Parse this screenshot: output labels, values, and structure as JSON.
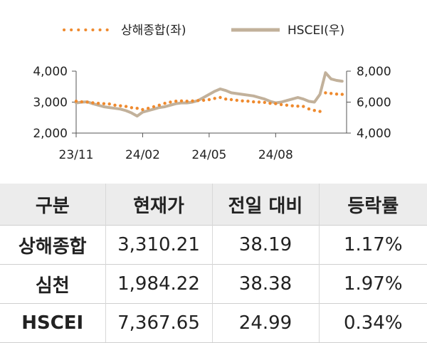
{
  "colors": {
    "shanghai": "#ef8a2e",
    "hscei": "#c2b19b",
    "axis": "#555555",
    "table_header_bg": "#ececec"
  },
  "legend": {
    "shanghai_label": "상해종합(좌)",
    "hscei_label": "HSCEI(우)"
  },
  "chart_data": {
    "type": "line",
    "x_ticks": [
      "23/11",
      "24/02",
      "24/05",
      "24/08"
    ],
    "x_tick_months": [
      0,
      3,
      6,
      9
    ],
    "x_range_months": [
      0,
      12.2
    ],
    "y_left": {
      "ticks": [
        "4,000",
        "3,000",
        "2,000"
      ],
      "tick_values": [
        4000,
        3000,
        2000
      ],
      "lim": [
        2000,
        4000
      ]
    },
    "y_right": {
      "ticks": [
        "8,000",
        "6,000",
        "4,000"
      ],
      "tick_values": [
        8000,
        6000,
        4000
      ],
      "lim": [
        4000,
        8000
      ]
    },
    "grid": false,
    "legend_position": "top",
    "series": [
      {
        "name": "상해종합(좌)",
        "axis": "left",
        "style": "dotted",
        "x": [
          0,
          0.25,
          0.5,
          0.75,
          1,
          1.25,
          1.5,
          1.75,
          2,
          2.25,
          2.5,
          2.75,
          3,
          3.25,
          3.5,
          3.75,
          4,
          4.25,
          4.5,
          4.75,
          5,
          5.25,
          5.5,
          5.75,
          6,
          6.25,
          6.5,
          6.75,
          7,
          7.25,
          7.5,
          7.75,
          8,
          8.25,
          8.5,
          8.75,
          9,
          9.25,
          9.5,
          9.75,
          10,
          10.25,
          10.5,
          10.75,
          11,
          11.25,
          11.5,
          11.75,
          12
        ],
        "values": [
          3030,
          3010,
          3000,
          2980,
          2960,
          2950,
          2940,
          2900,
          2880,
          2860,
          2820,
          2800,
          2760,
          2800,
          2850,
          2900,
          2960,
          3000,
          3030,
          3040,
          3030,
          3040,
          3050,
          3060,
          3080,
          3120,
          3150,
          3100,
          3080,
          3060,
          3040,
          3030,
          3010,
          3000,
          2990,
          2960,
          2950,
          2920,
          2900,
          2880,
          2870,
          2860,
          2780,
          2730,
          2700,
          3300,
          3280,
          3260,
          3250
        ]
      },
      {
        "name": "HSCEI(우)",
        "axis": "right",
        "style": "solid",
        "x": [
          0,
          0.25,
          0.5,
          0.75,
          1,
          1.25,
          1.5,
          1.75,
          2,
          2.25,
          2.5,
          2.75,
          3,
          3.25,
          3.5,
          3.75,
          4,
          4.25,
          4.5,
          4.75,
          5,
          5.25,
          5.5,
          5.75,
          6,
          6.25,
          6.5,
          6.75,
          7,
          7.25,
          7.5,
          7.75,
          8,
          8.25,
          8.5,
          8.75,
          9,
          9.25,
          9.5,
          9.75,
          10,
          10.25,
          10.5,
          10.75,
          11,
          11.25,
          11.5,
          11.75,
          12
        ],
        "values": [
          5950,
          6000,
          6020,
          5900,
          5800,
          5700,
          5650,
          5600,
          5550,
          5450,
          5300,
          5100,
          5350,
          5450,
          5550,
          5650,
          5700,
          5800,
          5900,
          5950,
          5950,
          6000,
          6100,
          6300,
          6500,
          6700,
          6850,
          6750,
          6600,
          6550,
          6500,
          6450,
          6400,
          6300,
          6200,
          6050,
          5950,
          6000,
          6100,
          6200,
          6300,
          6200,
          6050,
          6000,
          6500,
          7900,
          7500,
          7400,
          7350
        ]
      }
    ]
  },
  "table": {
    "headers": [
      "구분",
      "현재가",
      "전일 대비",
      "등락률"
    ],
    "rows": [
      [
        "상해종합",
        "3,310.21",
        "38.19",
        "1.17%"
      ],
      [
        "심천",
        "1,984.22",
        "38.38",
        "1.97%"
      ],
      [
        "HSCEI",
        "7,367.65",
        "24.99",
        "0.34%"
      ]
    ]
  }
}
